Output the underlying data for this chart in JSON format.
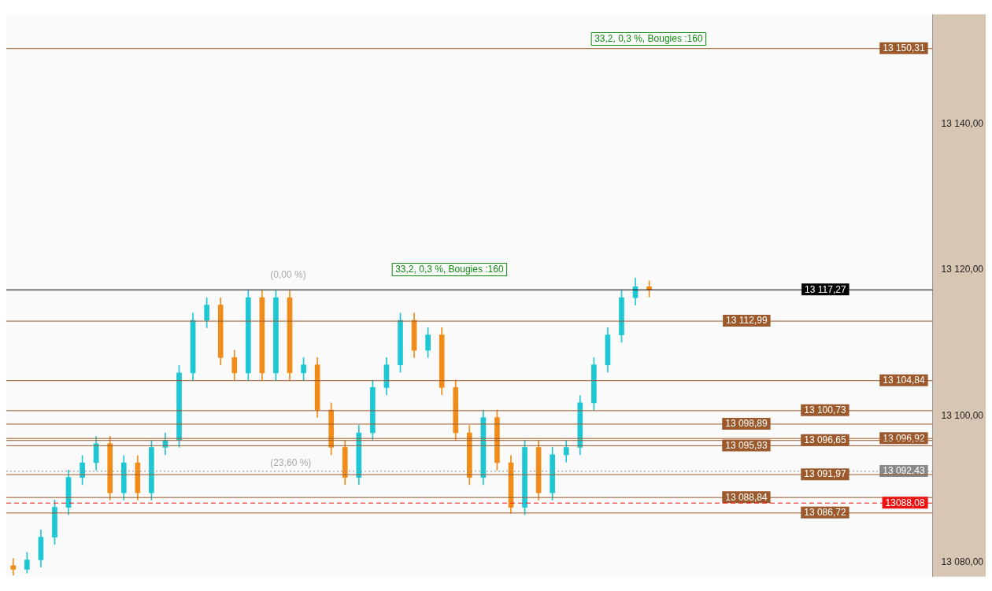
{
  "chart_data": {
    "type": "candlestick",
    "categories": [
      null,
      null,
      null,
      null,
      null,
      null,
      null,
      null,
      null,
      null,
      null,
      null,
      null,
      null,
      null,
      null,
      null,
      null,
      null,
      null,
      null,
      null,
      null,
      null,
      null,
      null,
      null,
      null,
      null,
      null,
      null,
      null,
      null,
      null,
      null,
      null,
      null,
      null,
      null,
      null,
      null,
      null,
      null,
      null,
      null,
      null,
      null,
      null,
      null,
      null,
      null,
      null,
      null,
      null,
      null,
      null,
      null,
      null,
      null,
      null,
      null,
      null,
      null,
      null,
      null,
      null,
      null
    ],
    "ohlc": [
      [
        13079.5,
        13080.5,
        13078.2,
        13079.0
      ],
      [
        13079.0,
        13081.3,
        13078.5,
        13080.3
      ],
      [
        13080.3,
        13084.4,
        13079.3,
        13083.4
      ],
      [
        13083.4,
        13088.5,
        13082.4,
        13087.5
      ],
      [
        13087.5,
        13092.6,
        13086.5,
        13091.6
      ],
      [
        13091.6,
        13094.6,
        13090.6,
        13093.6
      ],
      [
        13093.6,
        13097.2,
        13092.6,
        13096.2
      ],
      [
        13096.2,
        13097.2,
        13088.5,
        13089.5
      ],
      [
        13089.5,
        13094.6,
        13088.5,
        13093.6
      ],
      [
        13093.6,
        13094.6,
        13088.5,
        13089.5
      ],
      [
        13089.5,
        13096.7,
        13088.5,
        13095.7
      ],
      [
        13095.7,
        13097.7,
        13094.7,
        13096.7
      ],
      [
        13096.7,
        13106.9,
        13095.7,
        13105.9
      ],
      [
        13105.9,
        13114.1,
        13104.9,
        13113.1
      ],
      [
        13113.1,
        13116.2,
        13112.1,
        13115.2
      ],
      [
        13115.2,
        13116.2,
        13107.0,
        13108.0
      ],
      [
        13108.0,
        13109.0,
        13104.9,
        13105.9
      ],
      [
        13105.9,
        13117.2,
        13104.9,
        13116.2
      ],
      [
        13116.2,
        13117.2,
        13104.9,
        13105.9
      ],
      [
        13105.9,
        13117.2,
        13104.9,
        13116.2
      ],
      [
        13116.2,
        13117.2,
        13104.9,
        13105.9
      ],
      [
        13105.9,
        13108.0,
        13104.9,
        13107.0
      ],
      [
        13107.0,
        13108.0,
        13099.8,
        13100.8
      ],
      [
        13100.8,
        13101.8,
        13094.7,
        13095.7
      ],
      [
        13095.7,
        13096.7,
        13090.6,
        13091.6
      ],
      [
        13091.6,
        13098.7,
        13090.6,
        13097.7
      ],
      [
        13097.7,
        13104.9,
        13096.7,
        13103.9
      ],
      [
        13103.9,
        13108.0,
        13102.9,
        13107.0
      ],
      [
        13107.0,
        13114.1,
        13106.0,
        13113.1
      ],
      [
        13113.1,
        13114.1,
        13108.0,
        13109.0
      ],
      [
        13109.0,
        13112.1,
        13108.0,
        13111.1
      ],
      [
        13111.1,
        13112.1,
        13102.9,
        13103.9
      ],
      [
        13103.9,
        13104.9,
        13096.7,
        13097.7
      ],
      [
        13097.7,
        13098.7,
        13090.6,
        13091.6
      ],
      [
        13091.6,
        13100.8,
        13090.6,
        13099.8
      ],
      [
        13099.8,
        13100.8,
        13092.6,
        13093.6
      ],
      [
        13093.6,
        13094.6,
        13086.7,
        13087.5
      ],
      [
        13087.5,
        13096.7,
        13086.5,
        13095.7
      ],
      [
        13095.7,
        13096.7,
        13088.5,
        13089.5
      ],
      [
        13089.5,
        13095.7,
        13088.5,
        13094.7
      ],
      [
        13094.7,
        13096.7,
        13093.7,
        13095.7
      ],
      [
        13095.7,
        13102.8,
        13094.7,
        13101.8
      ],
      [
        13101.8,
        13108.0,
        13100.8,
        13107.0
      ],
      [
        13107.0,
        13112.1,
        13106.0,
        13111.1
      ],
      [
        13111.1,
        13117.2,
        13110.1,
        13116.2
      ],
      [
        13116.2,
        13118.9,
        13115.2,
        13117.7
      ],
      [
        13117.7,
        13118.5,
        13116.3,
        13117.3
      ],
      null,
      null,
      null,
      null,
      null,
      null,
      null,
      null,
      null,
      null,
      null,
      null,
      null,
      null,
      null,
      null,
      null,
      null,
      null,
      null
    ],
    "colors": [
      "#f08c1a",
      "#1fc7d4",
      "#1fc7d4",
      "#1fc7d4",
      "#1fc7d4",
      "#1fc7d4",
      "#1fc7d4",
      "#f08c1a",
      "#1fc7d4",
      "#f08c1a",
      "#1fc7d4",
      "#1fc7d4",
      "#1fc7d4",
      "#1fc7d4",
      "#1fc7d4",
      "#f08c1a",
      "#f08c1a",
      "#1fc7d4",
      "#f08c1a",
      "#1fc7d4",
      "#f08c1a",
      "#1fc7d4",
      "#f08c1a",
      "#f08c1a",
      "#f08c1a",
      "#1fc7d4",
      "#1fc7d4",
      "#1fc7d4",
      "#1fc7d4",
      "#f08c1a",
      "#1fc7d4",
      "#f08c1a",
      "#f08c1a",
      "#f08c1a",
      "#1fc7d4",
      "#f08c1a",
      "#f08c1a",
      "#1fc7d4",
      "#f08c1a",
      "#1fc7d4",
      "#1fc7d4",
      "#1fc7d4",
      "#1fc7d4",
      "#1fc7d4",
      "#1fc7d4",
      "#1fc7d4",
      "#f08c1a",
      null,
      null,
      null,
      null,
      null,
      null,
      null,
      null,
      null,
      null,
      null,
      null,
      null,
      null,
      null,
      null,
      null,
      null,
      null,
      null
    ],
    "ylim": [
      13078,
      13155
    ],
    "yticks": [
      {
        "value": 13080,
        "label": "13 080,00"
      },
      {
        "value": 13100,
        "label": "13 100,00"
      },
      {
        "value": 13120,
        "label": "13 120,00"
      },
      {
        "value": 13140,
        "label": "13 140,00"
      }
    ],
    "grid": false,
    "tick_labels": "y",
    "ref_lines": [
      {
        "axis": "y",
        "value": 13150.31,
        "label": "13 150,31",
        "color": "#9c5a2c"
      },
      {
        "axis": "y",
        "value": 13117.27,
        "label": "13 117,27",
        "color": "#000000"
      },
      {
        "axis": "y",
        "value": 13112.99,
        "label": "13 112,99",
        "color": "#9c5a2c"
      },
      {
        "axis": "y",
        "value": 13104.84,
        "label": "13 104,84",
        "color": "#9c5a2c"
      },
      {
        "axis": "y",
        "value": 13100.73,
        "label": "13 100,73",
        "color": "#9c5a2c"
      },
      {
        "axis": "y",
        "value": 13098.89,
        "label": "13 098,89",
        "color": "#9c5a2c"
      },
      {
        "axis": "y",
        "value": 13096.92,
        "label": "13 096,92",
        "color": "#9c5a2c"
      },
      {
        "axis": "y",
        "value": 13096.65,
        "label": "13 096,65",
        "color": "#9c5a2c"
      },
      {
        "axis": "y",
        "value": 13095.93,
        "label": "13 095,93",
        "color": "#9c5a2c"
      },
      {
        "axis": "y",
        "value": 13092.43,
        "label": "13 092,43",
        "color": "#888888",
        "line_style": "dotted"
      },
      {
        "axis": "y",
        "value": 13091.97,
        "label": "13 091,97",
        "color": "#9c5a2c"
      },
      {
        "axis": "y",
        "value": 13088.84,
        "label": "13 088,84",
        "color": "#9c5a2c"
      },
      {
        "axis": "y",
        "value": 13088.08,
        "label": "13088,08",
        "color": "#ee1111",
        "line_style": "dashed"
      },
      {
        "axis": "y",
        "value": 13086.72,
        "label": "13 086,72",
        "color": "#9c5a2c"
      }
    ],
    "annotations": [
      "(0,00 %)",
      "(23,60 %)",
      "33,2, 0,3 %, Bougies :160",
      "33,2, 0,3 %, Bougies :160"
    ]
  }
}
